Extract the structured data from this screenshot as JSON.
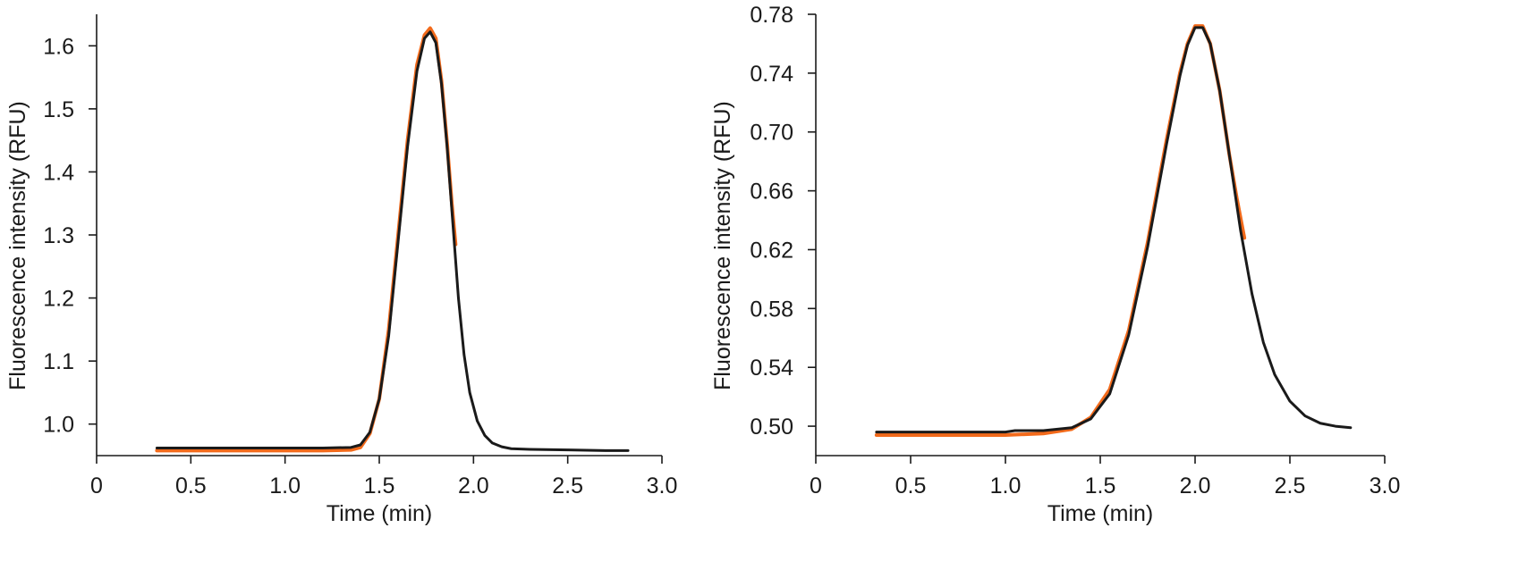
{
  "colors": {
    "measured": "#1a1a1a",
    "fit": "#f26a1b"
  },
  "chart_data": [
    {
      "type": "line",
      "xlabel": "Time (min)",
      "ylabel": "Fluorescence intensity (RFU)",
      "xlim": [
        0,
        3.0
      ],
      "ylim": [
        0.95,
        1.65
      ],
      "xticks": [
        0,
        0.5,
        1.0,
        1.5,
        2.0,
        2.5,
        3.0
      ],
      "xtick_labels": [
        "0",
        "0.5",
        "1.0",
        "1.5",
        "2.0",
        "2.5",
        "3.0"
      ],
      "yticks": [
        1.0,
        1.1,
        1.2,
        1.3,
        1.4,
        1.5,
        1.6
      ],
      "ytick_labels": [
        "1.0",
        "1.1",
        "1.2",
        "1.3",
        "1.4",
        "1.5",
        "1.6"
      ],
      "grid": false,
      "series": [
        {
          "role": "fit",
          "color": "#f26a1b",
          "x": [
            0.32,
            0.6,
            0.9,
            1.2,
            1.35,
            1.4,
            1.45,
            1.5,
            1.55,
            1.6,
            1.65,
            1.7,
            1.74,
            1.77,
            1.8,
            1.83,
            1.86,
            1.885,
            1.905
          ],
          "y": [
            0.958,
            0.958,
            0.958,
            0.958,
            0.959,
            0.963,
            0.985,
            1.04,
            1.15,
            1.3,
            1.45,
            1.57,
            1.617,
            1.628,
            1.612,
            1.545,
            1.445,
            1.35,
            1.285
          ]
        },
        {
          "role": "measured",
          "color": "#1a1a1a",
          "x": [
            0.32,
            0.6,
            0.9,
            1.2,
            1.35,
            1.4,
            1.45,
            1.5,
            1.55,
            1.6,
            1.65,
            1.7,
            1.74,
            1.77,
            1.8,
            1.83,
            1.86,
            1.89,
            1.92,
            1.95,
            1.98,
            2.02,
            2.06,
            2.1,
            2.15,
            2.2,
            2.3,
            2.5,
            2.7,
            2.82
          ],
          "y": [
            0.962,
            0.962,
            0.962,
            0.962,
            0.963,
            0.967,
            0.987,
            1.04,
            1.14,
            1.29,
            1.44,
            1.56,
            1.612,
            1.622,
            1.605,
            1.54,
            1.44,
            1.32,
            1.2,
            1.11,
            1.05,
            1.005,
            0.982,
            0.97,
            0.964,
            0.961,
            0.96,
            0.959,
            0.958,
            0.958
          ]
        }
      ]
    },
    {
      "type": "line",
      "xlabel": "Time (min)",
      "ylabel": "Fluorescence intensity (RFU)",
      "xlim": [
        0,
        3.0
      ],
      "ylim": [
        0.48,
        0.78
      ],
      "xticks": [
        0,
        0.5,
        1.0,
        1.5,
        2.0,
        2.5,
        3.0
      ],
      "xtick_labels": [
        "0",
        "0.5",
        "1.0",
        "1.5",
        "2.0",
        "2.5",
        "3.0"
      ],
      "yticks": [
        0.5,
        0.54,
        0.58,
        0.62,
        0.66,
        0.7,
        0.74,
        0.78
      ],
      "ytick_labels": [
        "0.50",
        "0.54",
        "0.58",
        "0.62",
        "0.66",
        "0.70",
        "0.74",
        "0.78"
      ],
      "grid": false,
      "series": [
        {
          "role": "fit",
          "color": "#f26a1b",
          "x": [
            0.32,
            0.7,
            1.0,
            1.2,
            1.35,
            1.45,
            1.55,
            1.65,
            1.75,
            1.85,
            1.92,
            1.96,
            2.0,
            2.04,
            2.08,
            2.13,
            2.18,
            2.22,
            2.26
          ],
          "y": [
            0.494,
            0.494,
            0.494,
            0.495,
            0.498,
            0.506,
            0.525,
            0.565,
            0.625,
            0.695,
            0.74,
            0.76,
            0.772,
            0.772,
            0.76,
            0.728,
            0.685,
            0.655,
            0.628
          ]
        },
        {
          "role": "measured",
          "color": "#1a1a1a",
          "x": [
            0.32,
            0.7,
            1.0,
            1.05,
            1.2,
            1.35,
            1.45,
            1.55,
            1.65,
            1.75,
            1.85,
            1.92,
            1.96,
            2.0,
            2.04,
            2.08,
            2.13,
            2.18,
            2.24,
            2.3,
            2.36,
            2.42,
            2.5,
            2.58,
            2.66,
            2.74,
            2.82
          ],
          "y": [
            0.496,
            0.496,
            0.496,
            0.497,
            0.497,
            0.499,
            0.505,
            0.522,
            0.562,
            0.622,
            0.692,
            0.738,
            0.759,
            0.771,
            0.771,
            0.76,
            0.728,
            0.685,
            0.633,
            0.59,
            0.557,
            0.535,
            0.517,
            0.507,
            0.502,
            0.5,
            0.499
          ]
        }
      ]
    }
  ]
}
